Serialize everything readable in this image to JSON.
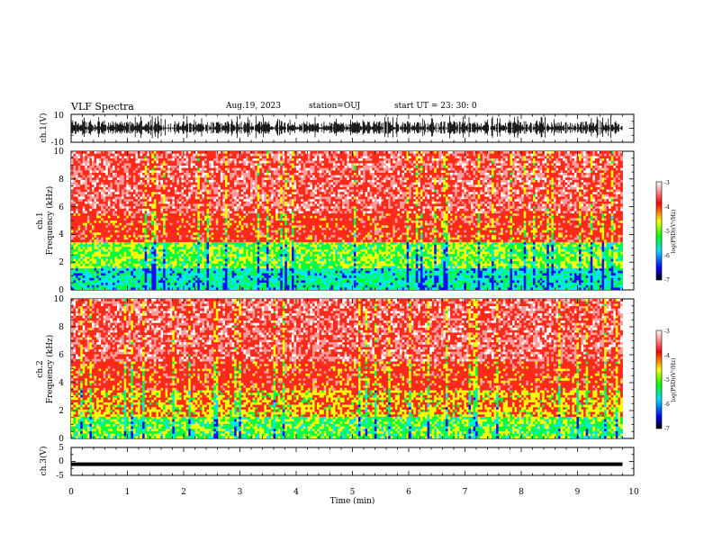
{
  "header": {
    "title": "VLF Spectra",
    "date": "Aug.19, 2023",
    "station": "station=OUJ",
    "start": "start  UT  =   23: 30: 0"
  },
  "chart_data": [
    {
      "type": "line",
      "panel": "ch1-waveform",
      "ylabel": "ch.1(V)",
      "ylim": [
        -10,
        10
      ],
      "yticks": [
        "10",
        "-10"
      ],
      "xlim": [
        0,
        10
      ]
    },
    {
      "type": "heatmap",
      "panel": "ch1-spectrogram",
      "ylabel_line1": "ch.1",
      "ylabel_line2": "Frequency (kHz)",
      "ylim": [
        0,
        10
      ],
      "yticks": [
        "0",
        "2",
        "4",
        "6",
        "8",
        "10"
      ],
      "xlim": [
        0,
        10
      ],
      "data_end_min": 9.8,
      "colorbar": {
        "label": "log(PSD)(V²/Hz)",
        "range": [
          -7,
          -3
        ],
        "ticks": [
          "-3",
          "-4",
          "-5",
          "-6",
          "-7"
        ]
      }
    },
    {
      "type": "heatmap",
      "panel": "ch2-spectrogram",
      "ylabel_line1": "ch.2",
      "ylabel_line2": "Frequency (kHz)",
      "ylim": [
        0,
        10
      ],
      "yticks": [
        "0",
        "2",
        "4",
        "6",
        "8",
        "10"
      ],
      "xlim": [
        0,
        10
      ],
      "data_end_min": 9.8,
      "colorbar": {
        "label": "log(PSD)(V²/Hz)",
        "range": [
          -7,
          -3
        ],
        "ticks": [
          "-3",
          "-4",
          "-5",
          "-6",
          "-7"
        ]
      }
    },
    {
      "type": "line",
      "panel": "ch3-waveform",
      "ylabel": "ch.3(V)",
      "ylim": [
        -5,
        5
      ],
      "yticks": [
        "5",
        "0",
        "-5"
      ],
      "level": -1,
      "xlim": [
        0,
        10
      ],
      "xlabel": "Time (min)",
      "xticks": [
        "0",
        "1",
        "2",
        "3",
        "4",
        "5",
        "6",
        "7",
        "8",
        "9",
        "10"
      ]
    }
  ]
}
